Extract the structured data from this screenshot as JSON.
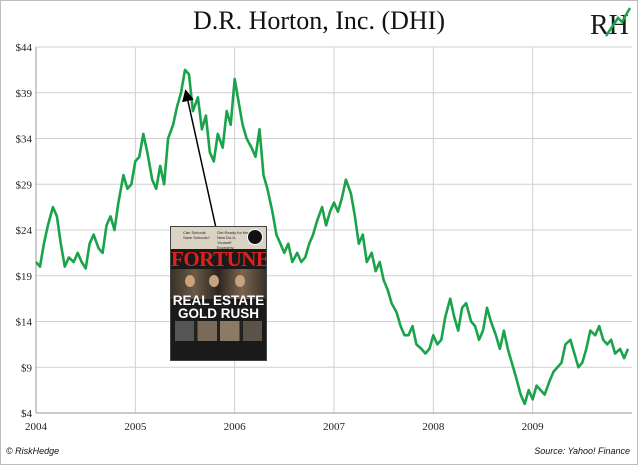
{
  "header": {
    "title": "D.R. Horton, Inc. (DHI)",
    "logo_text": "RH"
  },
  "footer": {
    "left": "© RiskHedge",
    "right": "Source: Yahoo! Finance"
  },
  "magazine_cover": {
    "masthead": "FORTUNE",
    "headline_line1": "REAL ESTATE",
    "headline_line2": "GOLD RUSH",
    "tease_left": "Can Schools Save Schools?",
    "tease_right": "Get Ready for the New Do-It-Yourself Economy"
  },
  "colors": {
    "line": "#1aa34a",
    "arrow": "#000000",
    "cover_masthead": "#e0201c"
  },
  "chart_data": {
    "type": "line",
    "title": "D.R. Horton, Inc. (DHI)",
    "xlabel": "",
    "ylabel": "",
    "xlim": [
      2004.0,
      2010.0
    ],
    "ylim": [
      4,
      44
    ],
    "grid": true,
    "y_ticks": [
      "$4",
      "$9",
      "$14",
      "$19",
      "$24",
      "$29",
      "$34",
      "$39",
      "$44"
    ],
    "y_tick_values": [
      4,
      9,
      14,
      19,
      24,
      29,
      34,
      39,
      44
    ],
    "x_ticks": [
      "2004",
      "2005",
      "2006",
      "2007",
      "2008",
      "2009"
    ],
    "x_tick_values": [
      2004,
      2005,
      2006,
      2007,
      2008,
      2009
    ],
    "annotation": {
      "text": "FORTUNE cover: Real Estate Gold Rush",
      "points_to": {
        "x": 2005.5,
        "y": 39.5
      }
    },
    "series": [
      {
        "x": [
          2004.0,
          2004.04,
          2004.08,
          2004.12,
          2004.17,
          2004.21,
          2004.25,
          2004.29,
          2004.33,
          2004.38,
          2004.42,
          2004.46,
          2004.5,
          2004.54,
          2004.58,
          2004.63,
          2004.67,
          2004.71,
          2004.75,
          2004.79,
          2004.83,
          2004.88,
          2004.92,
          2004.96,
          2005.0,
          2005.04,
          2005.08,
          2005.12,
          2005.17,
          2005.21,
          2005.25,
          2005.29,
          2005.33,
          2005.38,
          2005.42,
          2005.46,
          2005.5,
          2005.54,
          2005.58,
          2005.63,
          2005.67,
          2005.71,
          2005.75,
          2005.79,
          2005.83,
          2005.88,
          2005.92,
          2005.96,
          2006.0,
          2006.04,
          2006.08,
          2006.12,
          2006.17,
          2006.21,
          2006.25,
          2006.29,
          2006.33,
          2006.38,
          2006.42,
          2006.46,
          2006.5,
          2006.54,
          2006.58,
          2006.63,
          2006.67,
          2006.71,
          2006.75,
          2006.79,
          2006.83,
          2006.88,
          2006.92,
          2006.96,
          2007.0,
          2007.04,
          2007.08,
          2007.12,
          2007.17,
          2007.21,
          2007.25,
          2007.29,
          2007.33,
          2007.38,
          2007.42,
          2007.46,
          2007.5,
          2007.54,
          2007.58,
          2007.63,
          2007.67,
          2007.71,
          2007.75,
          2007.79,
          2007.83,
          2007.88,
          2007.92,
          2007.96,
          2008.0,
          2008.04,
          2008.08,
          2008.12,
          2008.17,
          2008.21,
          2008.25,
          2008.29,
          2008.33,
          2008.38,
          2008.42,
          2008.46,
          2008.5,
          2008.54,
          2008.58,
          2008.63,
          2008.67,
          2008.71,
          2008.75,
          2008.79,
          2008.83,
          2008.88,
          2008.92,
          2008.96,
          2009.0,
          2009.04,
          2009.08,
          2009.12,
          2009.17,
          2009.21,
          2009.25,
          2009.29,
          2009.33,
          2009.38,
          2009.42,
          2009.46,
          2009.5,
          2009.54,
          2009.58,
          2009.63,
          2009.67,
          2009.71,
          2009.75,
          2009.79,
          2009.83,
          2009.88,
          2009.92,
          2009.96
        ],
        "y": [
          20.5,
          20.0,
          22.5,
          24.5,
          26.5,
          25.5,
          22.5,
          20.0,
          21.0,
          20.5,
          21.5,
          20.5,
          19.8,
          22.5,
          23.5,
          22.0,
          21.5,
          24.5,
          25.5,
          24.0,
          27.0,
          30.0,
          28.5,
          29.0,
          31.5,
          32.0,
          34.5,
          32.5,
          29.5,
          28.5,
          31.0,
          29.0,
          34.0,
          35.5,
          37.5,
          39.0,
          41.5,
          41.0,
          37.0,
          38.5,
          35.0,
          36.5,
          32.5,
          31.5,
          34.5,
          33.0,
          37.0,
          35.5,
          40.5,
          38.0,
          35.5,
          34.0,
          33.0,
          32.0,
          35.0,
          30.0,
          28.5,
          26.0,
          23.5,
          22.5,
          21.5,
          22.5,
          20.5,
          21.5,
          20.5,
          21.0,
          22.5,
          23.5,
          25.0,
          26.5,
          24.5,
          26.0,
          27.0,
          26.0,
          27.5,
          29.5,
          28.0,
          25.5,
          22.5,
          23.5,
          20.5,
          21.5,
          19.5,
          20.5,
          18.5,
          17.5,
          16.0,
          15.0,
          13.5,
          12.5,
          12.5,
          13.5,
          11.5,
          11.0,
          10.5,
          11.0,
          12.5,
          11.5,
          12.0,
          14.5,
          16.5,
          14.5,
          13.0,
          15.5,
          16.0,
          14.0,
          13.5,
          12.0,
          13.0,
          15.5,
          14.0,
          12.5,
          11.0,
          13.0,
          11.0,
          9.5,
          8.0,
          6.0,
          5.0,
          6.5,
          5.5,
          7.0,
          6.5,
          6.0,
          7.5,
          8.5,
          9.0,
          9.5,
          11.5,
          12.0,
          10.5,
          9.0,
          9.5,
          11.0,
          13.0,
          12.5,
          13.5,
          12.0,
          11.5,
          12.0,
          10.5,
          11.0,
          10.0,
          11.0
        ]
      }
    ]
  }
}
